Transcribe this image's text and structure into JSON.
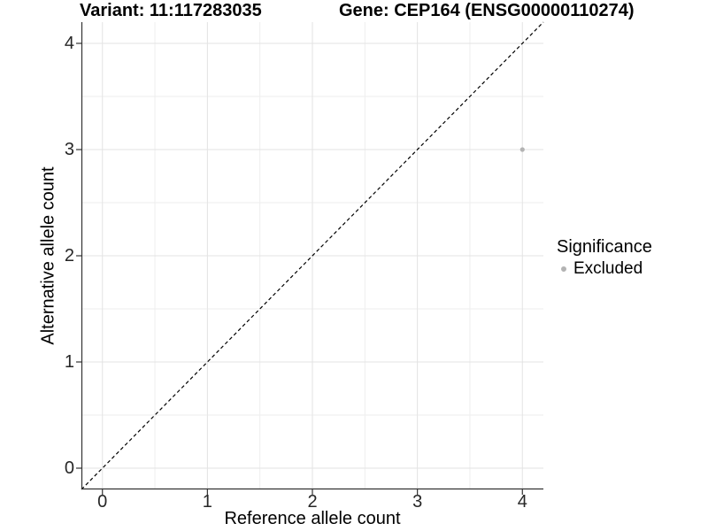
{
  "header": {
    "variant_title": "Variant: 11:117283035",
    "gene_title": "Gene: CEP164 (ENSG00000110274)"
  },
  "axes": {
    "x_label": "Reference allele count",
    "y_label": "Alternative allele count"
  },
  "legend": {
    "title": "Significance",
    "items": [
      {
        "label": "Excluded",
        "color": "#b3b3b3"
      }
    ]
  },
  "chart_data": {
    "type": "scatter",
    "title": "Variant: 11:117283035 / Gene: CEP164 (ENSG00000110274)",
    "xlabel": "Reference allele count",
    "ylabel": "Alternative allele count",
    "xlim": [
      -0.2,
      4.2
    ],
    "ylim": [
      -0.2,
      4.2
    ],
    "x_ticks": [
      0,
      1,
      2,
      3,
      4
    ],
    "y_ticks": [
      0,
      1,
      2,
      3,
      4
    ],
    "x_minor_ticks": [
      0.5,
      1.5,
      2.5,
      3.5
    ],
    "y_minor_ticks": [
      0.5,
      1.5,
      2.5,
      3.5
    ],
    "grid": true,
    "legend_position": "right",
    "series": [
      {
        "name": "Excluded",
        "color": "#b3b3b3",
        "point_radius": 2.6,
        "points": [
          {
            "x": 4,
            "y": 3
          }
        ]
      }
    ],
    "reference_line": {
      "type": "identity",
      "equation": "y = x",
      "style": "dashed",
      "color": "#000000"
    }
  },
  "colors": {
    "background": "#ffffff",
    "grid_major": "#e3e3e3",
    "grid_minor": "#eeeeee",
    "axis_line": "#333333",
    "tick_mark": "#333333",
    "tick_label": "#262626",
    "title_text": "#000000"
  }
}
